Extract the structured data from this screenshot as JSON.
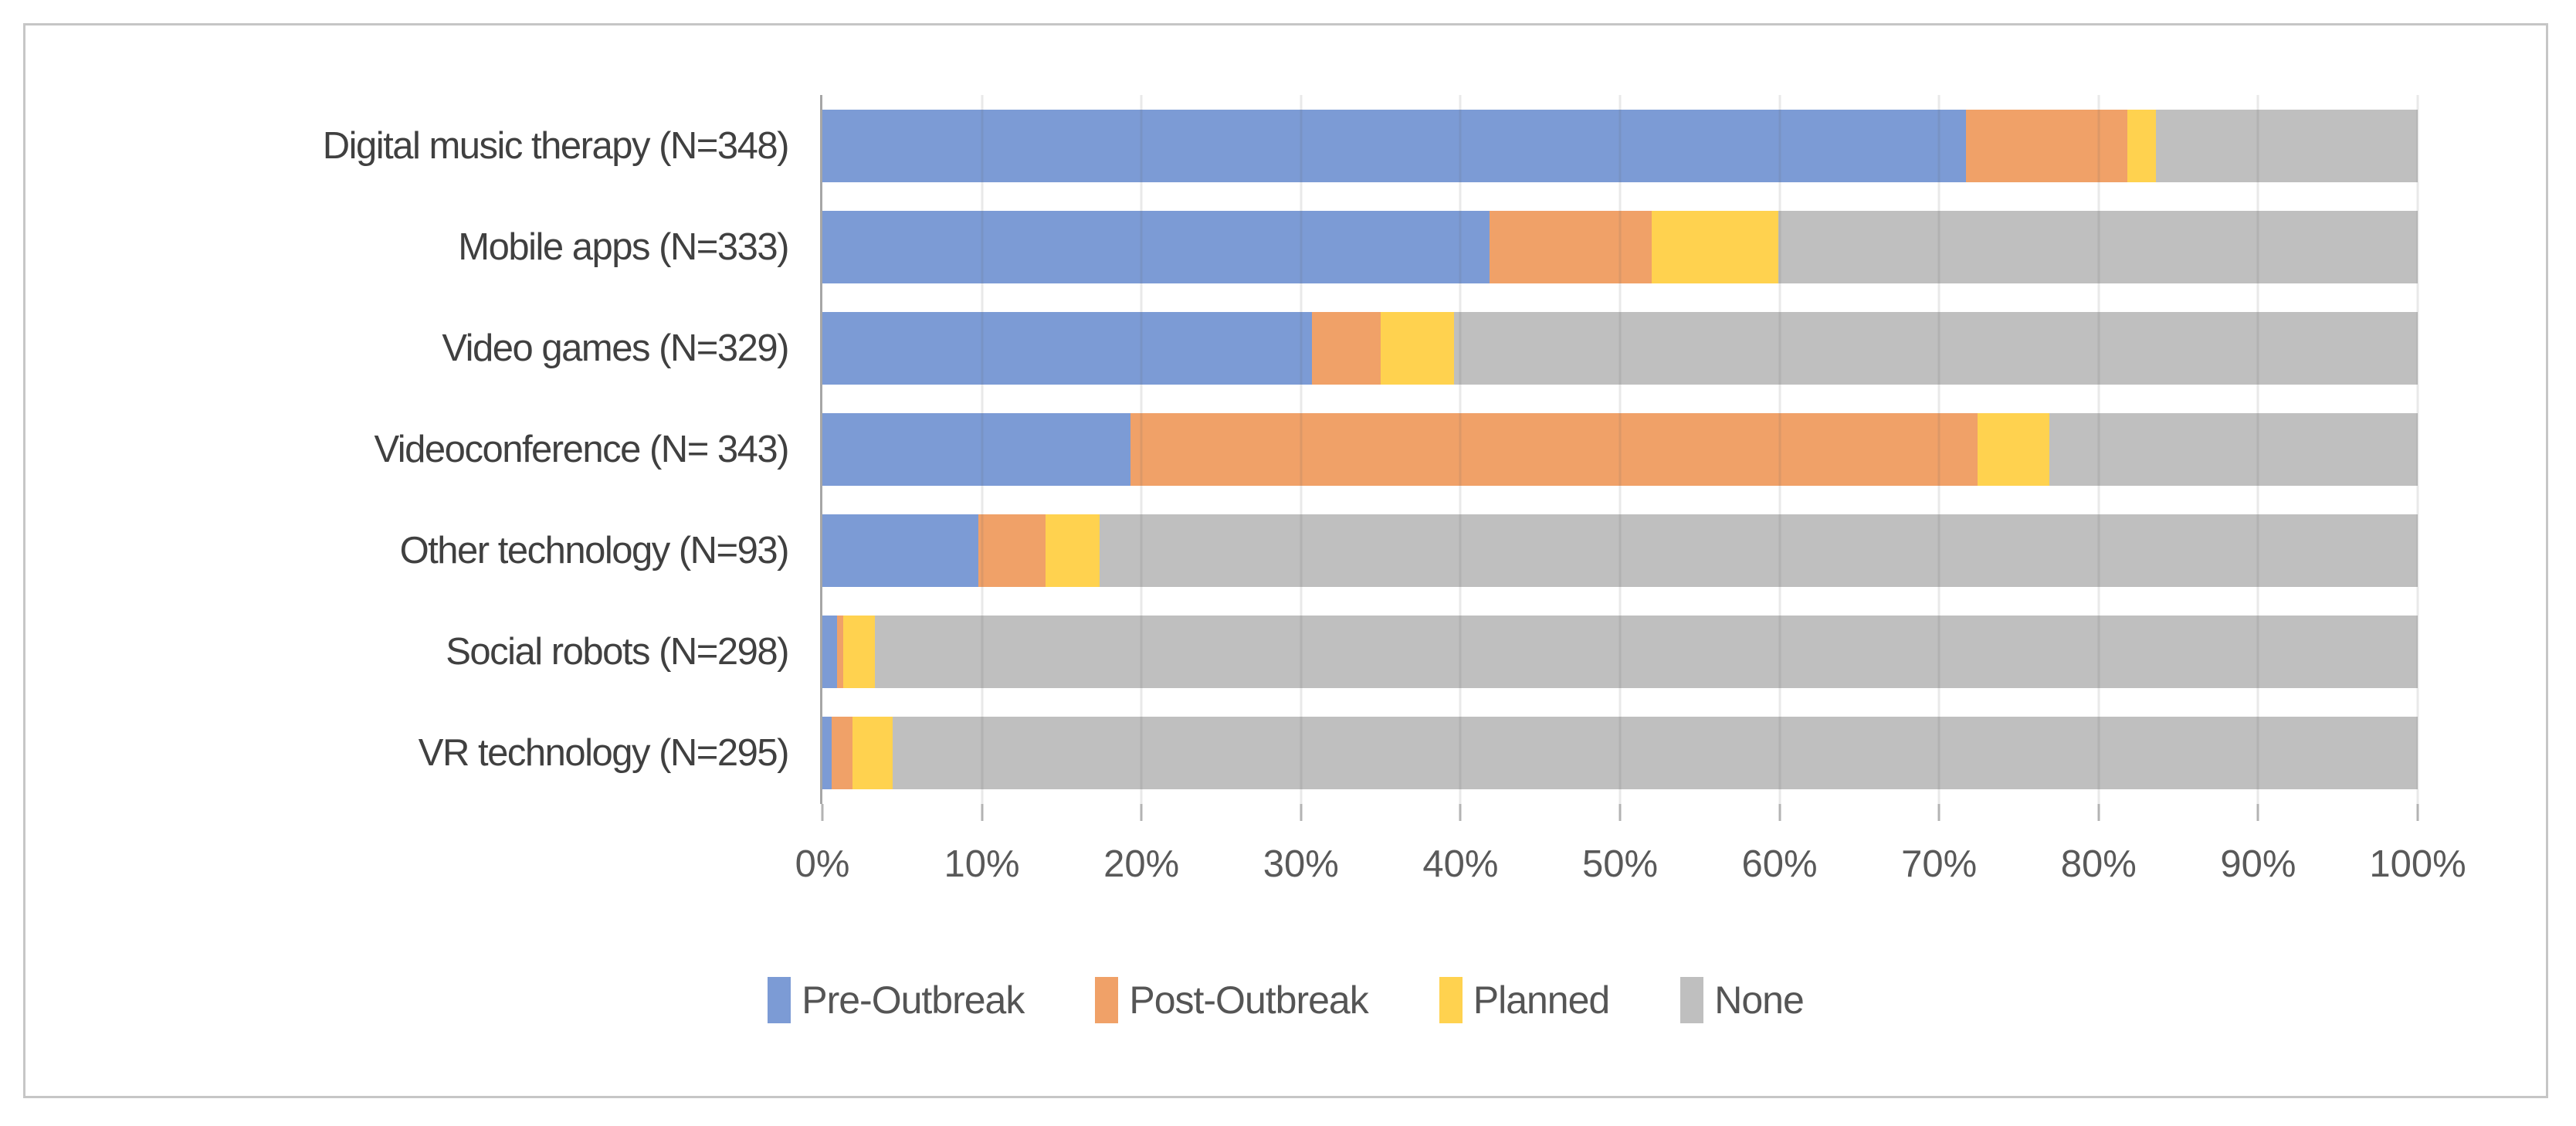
{
  "chart_data": {
    "type": "bar",
    "orientation": "horizontal",
    "stacked": true,
    "title": "",
    "xlabel": "",
    "ylabel": "",
    "xlim": [
      0,
      100
    ],
    "grid": true,
    "legend_position": "bottom",
    "x_ticks": [
      "0%",
      "10%",
      "20%",
      "30%",
      "40%",
      "50%",
      "60%",
      "70%",
      "80%",
      "90%",
      "100%"
    ],
    "categories": [
      "Digital music therapy (N=348)",
      "Mobile apps (N=333)",
      "Video games (N=329)",
      "Videoconference (N= 343)",
      "Other technology (N=93)",
      "Social robots (N=298)",
      "VR technology (N=295)"
    ],
    "series": [
      {
        "name": "Pre-Outbreak",
        "color": "#7c9bd5",
        "values": [
          71.7,
          41.8,
          30.7,
          19.3,
          9.8,
          0.9,
          0.6
        ]
      },
      {
        "name": "Post-Outbreak",
        "color": "#f0a168",
        "values": [
          10.1,
          10.2,
          4.3,
          53.1,
          4.2,
          0.4,
          1.3
        ]
      },
      {
        "name": "Planned",
        "color": "#ffd24f",
        "values": [
          1.8,
          7.9,
          4.6,
          4.5,
          3.4,
          2.0,
          2.5
        ]
      },
      {
        "name": "None",
        "color": "#bfbfbf",
        "values": [
          16.4,
          40.1,
          60.4,
          23.1,
          82.6,
          96.7,
          95.6
        ]
      }
    ],
    "axis_color": "#a6a6a6",
    "gridline_color": "rgba(100,100,100,0.14)",
    "label_color": "#404040",
    "tick_label_color": "#595959"
  }
}
